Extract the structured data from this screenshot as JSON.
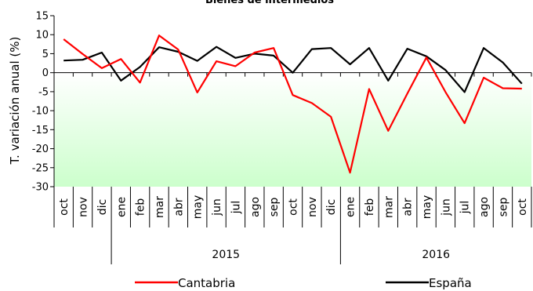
{
  "chart_data": {
    "type": "line",
    "title": "Bienes de intermedios",
    "ylabel": "T. variación anual (%)",
    "ylim": [
      -30,
      15
    ],
    "yticks": [
      15,
      10,
      5,
      0,
      -5,
      -10,
      -15,
      -20,
      -25,
      -30
    ],
    "categories": [
      "oct",
      "nov",
      "dic",
      "ene",
      "feb",
      "mar",
      "abr",
      "may",
      "jun",
      "jul",
      "ago",
      "sep",
      "oct",
      "nov",
      "dic",
      "ene",
      "feb",
      "mar",
      "abr",
      "may",
      "jun",
      "jul",
      "ago",
      "sep",
      "oct"
    ],
    "year_groups": [
      {
        "label": "",
        "start": 0,
        "end": 2
      },
      {
        "label": "2015",
        "start": 3,
        "end": 14
      },
      {
        "label": "2016",
        "start": 15,
        "end": 24
      }
    ],
    "series": [
      {
        "name": "Cantabria",
        "color": "#ff0000",
        "values": [
          8.8,
          4.9,
          1.2,
          3.6,
          -2.6,
          9.8,
          6.1,
          -5.2,
          3.0,
          1.7,
          5.3,
          6.5,
          -5.9,
          -8.0,
          -11.6,
          -26.3,
          -4.3,
          -15.3,
          -5.5,
          4.0,
          -5.1,
          -13.3,
          -1.3,
          -4.1,
          -4.2
        ]
      },
      {
        "name": "España",
        "color": "#000000",
        "values": [
          3.2,
          3.4,
          5.3,
          -2.1,
          1.5,
          6.7,
          5.5,
          3.1,
          6.8,
          3.9,
          5.0,
          4.5,
          0.0,
          6.2,
          6.5,
          2.2,
          6.5,
          -2.1,
          6.3,
          4.3,
          0.7,
          -5.1,
          6.5,
          2.7,
          -2.9
        ]
      }
    ],
    "grid": false,
    "legend_position": "bottom",
    "background_gradient": {
      "top": "#ffffff",
      "bottom": "#ccffcc"
    }
  }
}
